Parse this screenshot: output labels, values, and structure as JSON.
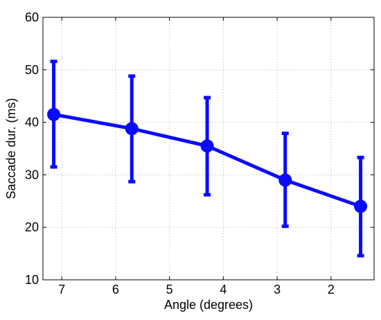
{
  "chart_data": {
    "type": "line",
    "title": "",
    "xlabel": "Angle (degrees)",
    "ylabel": "Saccade dur. (ms)",
    "xlim": [
      1.2,
      7.35
    ],
    "ylim": [
      10,
      60
    ],
    "x_reversed": true,
    "x_ticks": [
      7,
      6,
      5,
      4,
      3,
      2
    ],
    "y_ticks": [
      10,
      20,
      30,
      40,
      50,
      60
    ],
    "grid": true,
    "grid_style": "dotted",
    "legend": "none",
    "series": [
      {
        "color": "#0a0aff",
        "marker": "circle",
        "x": [
          7.15,
          5.7,
          4.3,
          2.85,
          1.45
        ],
        "y": [
          41.5,
          38.8,
          35.5,
          29.0,
          24.0
        ],
        "error_low": [
          31.5,
          28.7,
          26.2,
          20.2,
          14.6
        ],
        "error_high": [
          51.6,
          48.8,
          44.7,
          37.9,
          33.3
        ]
      }
    ]
  }
}
